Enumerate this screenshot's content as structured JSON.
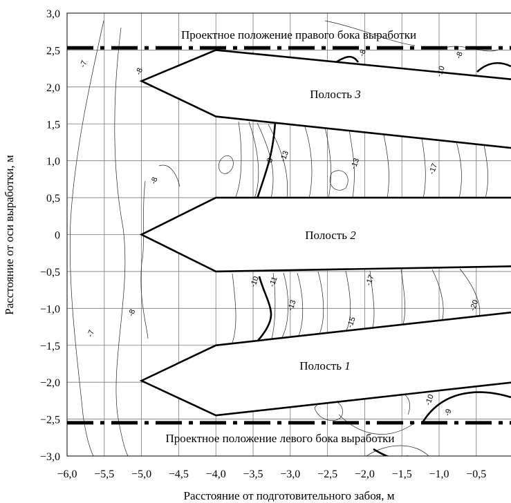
{
  "chart_data": {
    "type": "contour",
    "xlabel": "Расстояние от подготовительного забоя, м",
    "ylabel": "Расстояние от оси выработки, м",
    "xlim": [
      -6.0,
      0.0
    ],
    "ylim": [
      -3.0,
      3.0
    ],
    "grid": true,
    "x_ticks": [
      "−6,0",
      "−5,5",
      "−5,0",
      "−4,5",
      "−4,0",
      "−3,5",
      "−3,0",
      "−2,5",
      "−2,0",
      "−1,5",
      "−1,0",
      "−0,5",
      "0"
    ],
    "y_ticks": [
      "−3,0",
      "−2,5",
      "−2,0",
      "−1,5",
      "−1,0",
      "−0,5",
      "0",
      "0,5",
      "1,0",
      "1,5",
      "2,0",
      "2,5",
      "3,0"
    ],
    "boundaries": [
      {
        "label": "Проектное положение правого бока выработки",
        "y": 2.53
      },
      {
        "label": "Проектное положение левого бока выработки",
        "y": -2.55
      }
    ],
    "cavities": [
      {
        "prefix": "Полость ",
        "number": "3",
        "polygon": [
          [
            -5.0,
            2.08
          ],
          [
            -4.0,
            2.5
          ],
          [
            0.0,
            2.1
          ],
          [
            0.0,
            1.17
          ],
          [
            -4.0,
            1.6
          ]
        ]
      },
      {
        "prefix": "Полость ",
        "number": "2",
        "polygon": [
          [
            -5.0,
            0.0
          ],
          [
            -4.0,
            0.5
          ],
          [
            0.0,
            0.5
          ],
          [
            0.0,
            -0.43
          ],
          [
            -4.0,
            -0.5
          ]
        ]
      },
      {
        "prefix": "Полость ",
        "number": "1",
        "polygon": [
          [
            -5.0,
            -1.98
          ],
          [
            -4.0,
            -1.5
          ],
          [
            0.0,
            -1.05
          ],
          [
            0.0,
            -2.0
          ],
          [
            -4.0,
            -2.45
          ]
        ]
      }
    ],
    "contour_labels": [
      {
        "text": "-7",
        "x": -5.75,
        "y": 2.3
      },
      {
        "text": "-8",
        "x": -5.0,
        "y": 2.2
      },
      {
        "text": "-8",
        "x": -2.0,
        "y": 2.45
      },
      {
        "text": "-8",
        "x": -0.7,
        "y": 2.42
      },
      {
        "text": "-10",
        "x": -0.95,
        "y": 2.2
      },
      {
        "text": "-8",
        "x": -4.8,
        "y": 0.72
      },
      {
        "text": "-8",
        "x": -3.25,
        "y": 0.98
      },
      {
        "text": "-13",
        "x": -3.05,
        "y": 1.05
      },
      {
        "text": "-13",
        "x": -2.1,
        "y": 0.95
      },
      {
        "text": "-17",
        "x": -1.05,
        "y": 0.88
      },
      {
        "text": "-10",
        "x": -3.45,
        "y": -0.65
      },
      {
        "text": "-11",
        "x": -3.2,
        "y": -0.65
      },
      {
        "text": "-13",
        "x": -2.95,
        "y": -0.97
      },
      {
        "text": "-15",
        "x": -2.15,
        "y": -1.2
      },
      {
        "text": "-17",
        "x": -1.9,
        "y": -0.63
      },
      {
        "text": "-20",
        "x": -0.5,
        "y": -0.97
      },
      {
        "text": "-8",
        "x": -5.1,
        "y": -1.07
      },
      {
        "text": "-7",
        "x": -5.65,
        "y": -1.35
      },
      {
        "text": "-10",
        "x": -1.1,
        "y": -2.25
      },
      {
        "text": "-9",
        "x": -0.85,
        "y": -2.42
      }
    ]
  }
}
